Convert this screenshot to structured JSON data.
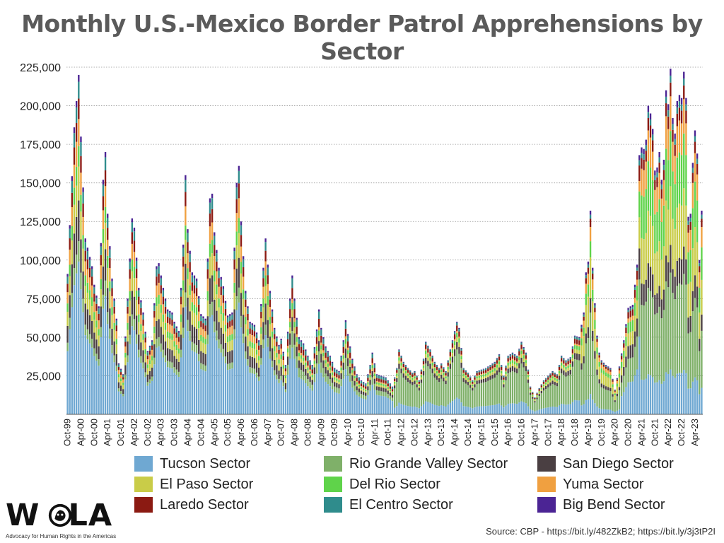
{
  "title": "Monthly U.S.-Mexico Border Patrol Apprehensions by Sector",
  "source": "Source: CBP - https://bit.ly/482ZkB2; https://bit.ly/3j3tP2I",
  "logo": {
    "word_left": "W",
    "word_right": "LA",
    "tagline": "Advocacy for Human Rights in the Americas"
  },
  "chart_data": {
    "type": "bar",
    "stacked": true,
    "ylim": [
      0,
      225000
    ],
    "yticks": [
      25000,
      50000,
      75000,
      100000,
      125000,
      150000,
      175000,
      200000,
      225000
    ],
    "ytick_labels": [
      "25,000",
      "50,000",
      "75,000",
      "100,000",
      "125,000",
      "150,000",
      "175,000",
      "200,000",
      "225,000"
    ],
    "grid": "horizontal dotted",
    "legend_position": "bottom",
    "x_start_month": "Oct-99",
    "x_tick_labels": [
      "Oct-99",
      "Apr-00",
      "Oct-00",
      "Apr-01",
      "Oct-01",
      "Apr-02",
      "Oct-02",
      "Apr-03",
      "Oct-03",
      "Apr-04",
      "Oct-04",
      "Apr-05",
      "Oct-05",
      "Apr-06",
      "Oct-06",
      "Apr-07",
      "Oct-07",
      "Apr-08",
      "Oct-08",
      "Apr-09",
      "Oct-09",
      "Apr-10",
      "Oct-10",
      "Apr-11",
      "Oct-11",
      "Apr-12",
      "Oct-12",
      "Apr-13",
      "Oct-13",
      "Apr-14",
      "Oct-14",
      "Apr-15",
      "Oct-15",
      "Apr-16",
      "Oct-16",
      "Apr-17",
      "Oct-17",
      "Apr-18",
      "Oct-18",
      "Apr-19",
      "Oct-19",
      "Apr-20",
      "Oct-20",
      "Apr-21",
      "Oct-21",
      "Apr-22",
      "Oct-22",
      "Apr-23"
    ],
    "series": [
      {
        "name": "Tucson Sector",
        "color": "#6fa8d2"
      },
      {
        "name": "Rio Grande Valley Sector",
        "color": "#7fb069"
      },
      {
        "name": "San Diego Sector",
        "color": "#4a3f42"
      },
      {
        "name": "El Paso Sector",
        "color": "#c9cc48"
      },
      {
        "name": "Del Rio Sector",
        "color": "#5fd34a"
      },
      {
        "name": "Yuma Sector",
        "color": "#f0a040"
      },
      {
        "name": "Laredo Sector",
        "color": "#8b1a12"
      },
      {
        "name": "El Centro Sector",
        "color": "#2f8c8c"
      },
      {
        "name": "Big Bend Sector",
        "color": "#4b2494"
      }
    ],
    "totals_anchor": [
      [
        "Oct-99",
        91000
      ],
      [
        "Jan-00",
        186000
      ],
      [
        "Mar-00",
        220000
      ],
      [
        "Apr-00",
        180000
      ],
      [
        "Jun-00",
        114000
      ],
      [
        "Sep-00",
        96000
      ],
      [
        "Oct-00",
        84000
      ],
      [
        "Dec-00",
        70000
      ],
      [
        "Feb-01",
        152000
      ],
      [
        "Mar-01",
        170000
      ],
      [
        "Apr-01",
        130000
      ],
      [
        "Jun-01",
        88000
      ],
      [
        "Aug-01",
        62000
      ],
      [
        "Sep-01",
        33000
      ],
      [
        "Nov-01",
        26000
      ],
      [
        "Jan-02",
        75000
      ],
      [
        "Mar-02",
        127000
      ],
      [
        "Apr-02",
        121000
      ],
      [
        "Jun-02",
        82000
      ],
      [
        "Aug-02",
        66000
      ],
      [
        "Oct-02",
        41000
      ],
      [
        "Dec-02",
        48000
      ],
      [
        "Feb-03",
        96000
      ],
      [
        "Mar-03",
        98000
      ],
      [
        "May-03",
        82000
      ],
      [
        "Jul-03",
        68000
      ],
      [
        "Sep-03",
        66000
      ],
      [
        "Oct-03",
        60000
      ],
      [
        "Dec-03",
        54000
      ],
      [
        "Feb-04",
        110000
      ],
      [
        "Mar-04",
        155000
      ],
      [
        "Apr-04",
        120000
      ],
      [
        "Jun-04",
        92000
      ],
      [
        "Aug-04",
        88000
      ],
      [
        "Oct-04",
        65000
      ],
      [
        "Dec-04",
        62000
      ],
      [
        "Feb-05",
        140000
      ],
      [
        "Mar-05",
        143000
      ],
      [
        "Apr-05",
        118000
      ],
      [
        "Jun-05",
        95000
      ],
      [
        "Aug-05",
        83000
      ],
      [
        "Oct-05",
        64000
      ],
      [
        "Dec-05",
        66000
      ],
      [
        "Feb-06",
        150000
      ],
      [
        "Mar-06",
        161000
      ],
      [
        "Apr-06",
        125000
      ],
      [
        "Jun-06",
        80000
      ],
      [
        "Aug-06",
        60000
      ],
      [
        "Oct-06",
        58000
      ],
      [
        "Dec-06",
        48000
      ],
      [
        "Feb-07",
        95000
      ],
      [
        "Mar-07",
        114000
      ],
      [
        "May-07",
        80000
      ],
      [
        "Jul-07",
        56000
      ],
      [
        "Sep-07",
        45000
      ],
      [
        "Oct-07",
        49000
      ],
      [
        "Dec-07",
        32000
      ],
      [
        "Feb-08",
        75000
      ],
      [
        "Mar-08",
        90000
      ],
      [
        "Apr-08",
        75000
      ],
      [
        "Jun-08",
        50000
      ],
      [
        "Aug-08",
        46000
      ],
      [
        "Oct-08",
        38000
      ],
      [
        "Dec-08",
        32000
      ],
      [
        "Feb-09",
        55000
      ],
      [
        "Mar-09",
        68000
      ],
      [
        "Apr-09",
        56000
      ],
      [
        "Jun-09",
        44000
      ],
      [
        "Aug-09",
        38000
      ],
      [
        "Oct-09",
        30000
      ],
      [
        "Dec-09",
        28000
      ],
      [
        "Feb-10",
        48000
      ],
      [
        "Mar-10",
        61000
      ],
      [
        "Apr-10",
        52000
      ],
      [
        "Jun-10",
        36000
      ],
      [
        "Aug-10",
        26000
      ],
      [
        "Oct-10",
        22000
      ],
      [
        "Dec-10",
        20000
      ],
      [
        "Feb-11",
        32000
      ],
      [
        "Mar-11",
        40000
      ],
      [
        "May-11",
        26000
      ],
      [
        "Jul-11",
        25000
      ],
      [
        "Sep-11",
        24000
      ],
      [
        "Oct-11",
        22000
      ],
      [
        "Dec-11",
        18000
      ],
      [
        "Feb-12",
        30000
      ],
      [
        "Mar-12",
        42000
      ],
      [
        "May-12",
        34000
      ],
      [
        "Jul-12",
        30000
      ],
      [
        "Sep-12",
        27000
      ],
      [
        "Oct-12",
        28000
      ],
      [
        "Dec-12",
        22000
      ],
      [
        "Feb-13",
        36000
      ],
      [
        "Mar-13",
        47000
      ],
      [
        "May-13",
        42000
      ],
      [
        "Jul-13",
        34000
      ],
      [
        "Sep-13",
        30000
      ],
      [
        "Oct-13",
        33000
      ],
      [
        "Dec-13",
        28000
      ],
      [
        "Feb-14",
        42000
      ],
      [
        "Apr-14",
        54000
      ],
      [
        "May-14",
        60000
      ],
      [
        "Jun-14",
        56000
      ],
      [
        "Aug-14",
        30000
      ],
      [
        "Oct-14",
        27000
      ],
      [
        "Dec-14",
        22000
      ],
      [
        "Feb-15",
        28000
      ],
      [
        "Apr-15",
        29000
      ],
      [
        "Jun-15",
        30000
      ],
      [
        "Aug-15",
        32000
      ],
      [
        "Oct-15",
        34000
      ],
      [
        "Dec-15",
        39000
      ],
      [
        "Feb-16",
        25000
      ],
      [
        "Apr-16",
        38000
      ],
      [
        "Jun-16",
        40000
      ],
      [
        "Aug-16",
        38000
      ],
      [
        "Oct-16",
        47000
      ],
      [
        "Dec-16",
        40000
      ],
      [
        "Feb-17",
        18000
      ],
      [
        "Apr-17",
        11000
      ],
      [
        "Jun-17",
        17000
      ],
      [
        "Aug-17",
        22000
      ],
      [
        "Oct-17",
        25000
      ],
      [
        "Dec-17",
        28000
      ],
      [
        "Feb-18",
        26000
      ],
      [
        "Apr-18",
        38000
      ],
      [
        "Jun-18",
        35000
      ],
      [
        "Aug-18",
        37000
      ],
      [
        "Oct-18",
        51000
      ],
      [
        "Dec-18",
        50000
      ],
      [
        "Feb-19",
        66000
      ],
      [
        "Mar-19",
        92000
      ],
      [
        "Apr-19",
        99000
      ],
      [
        "May-19",
        132000
      ],
      [
        "Jun-19",
        95000
      ],
      [
        "Jul-19",
        72000
      ],
      [
        "Aug-19",
        51000
      ],
      [
        "Sep-19",
        40000
      ],
      [
        "Oct-19",
        35000
      ],
      [
        "Dec-19",
        32000
      ],
      [
        "Feb-20",
        30000
      ],
      [
        "Apr-20",
        16000
      ],
      [
        "Jun-20",
        31000
      ],
      [
        "Aug-20",
        48000
      ],
      [
        "Oct-20",
        69000
      ],
      [
        "Dec-20",
        71000
      ],
      [
        "Feb-21",
        97000
      ],
      [
        "Mar-21",
        168000
      ],
      [
        "Apr-21",
        173000
      ],
      [
        "May-21",
        172000
      ],
      [
        "Jun-21",
        178000
      ],
      [
        "Jul-21",
        200000
      ],
      [
        "Aug-21",
        195000
      ],
      [
        "Sep-21",
        185000
      ],
      [
        "Oct-21",
        158000
      ],
      [
        "Nov-21",
        160000
      ],
      [
        "Dec-21",
        170000
      ],
      [
        "Jan-22",
        152000
      ],
      [
        "Feb-22",
        165000
      ],
      [
        "Mar-22",
        210000
      ],
      [
        "Apr-22",
        201000
      ],
      [
        "May-22",
        224000
      ],
      [
        "Jun-22",
        192000
      ],
      [
        "Jul-22",
        182000
      ],
      [
        "Aug-22",
        203000
      ],
      [
        "Sep-22",
        207000
      ],
      [
        "Oct-22",
        205000
      ],
      [
        "Nov-22",
        222000
      ],
      [
        "Dec-22",
        205000
      ],
      [
        "Jan-23",
        128000
      ],
      [
        "Feb-23",
        130000
      ],
      [
        "Mar-23",
        163000
      ],
      [
        "Apr-23",
        184000
      ],
      [
        "May-23",
        169000
      ],
      [
        "Jun-23",
        100000
      ],
      [
        "Jul-23",
        132000
      ]
    ]
  }
}
